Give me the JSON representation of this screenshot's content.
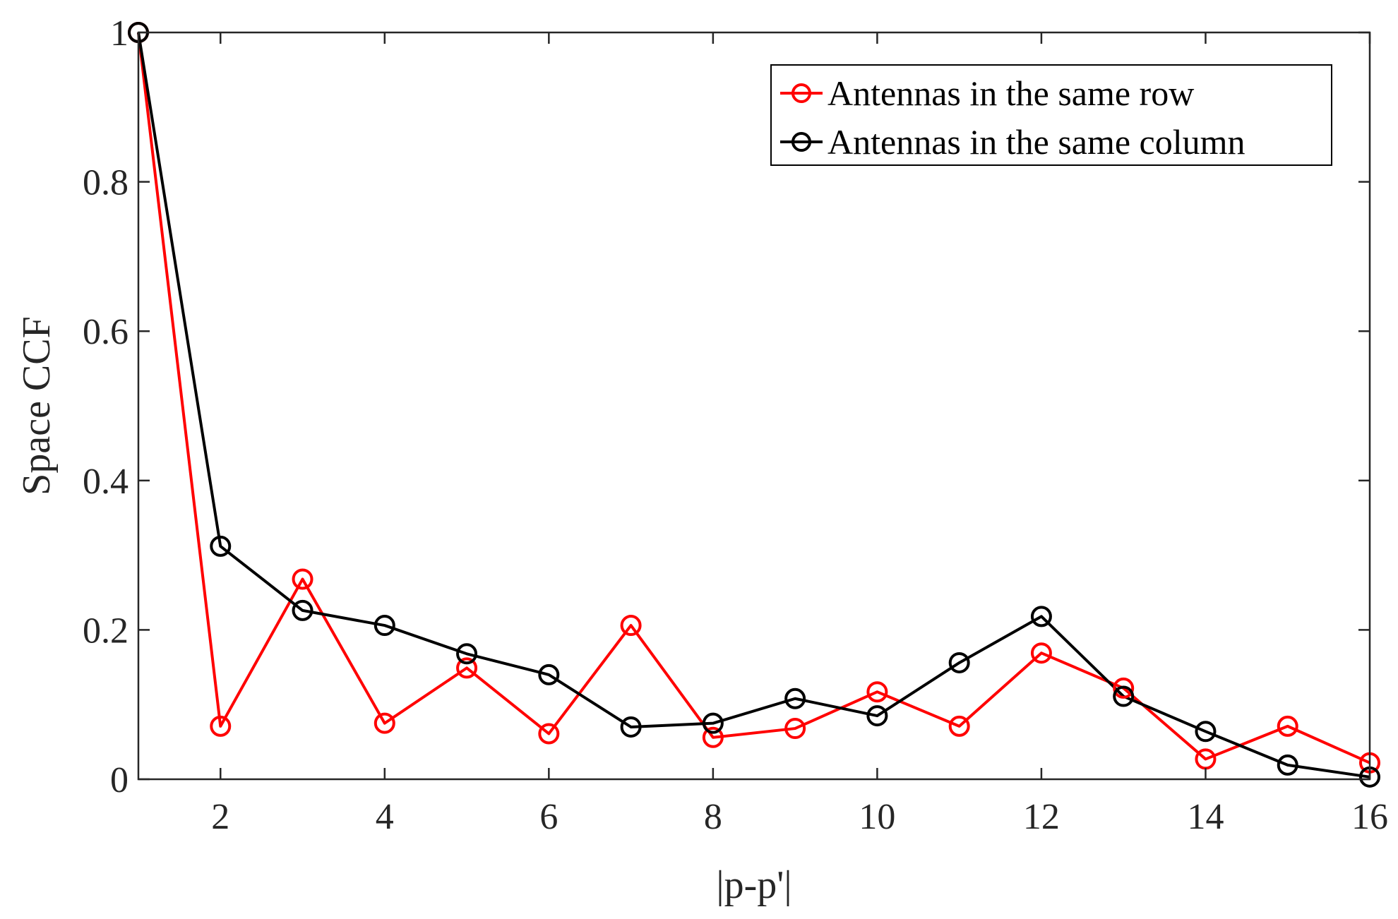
{
  "chart_data": {
    "type": "line",
    "xlabel": "|p-p'|",
    "ylabel": "Space CCF",
    "xlim": [
      1,
      16
    ],
    "ylim": [
      0,
      1
    ],
    "xticks": [
      2,
      4,
      6,
      8,
      10,
      12,
      14,
      16
    ],
    "yticks": [
      0,
      0.2,
      0.4,
      0.6,
      0.8,
      1
    ],
    "ytick_labels": [
      "0",
      "0.2",
      "0.4",
      "0.6",
      "0.8",
      "1"
    ],
    "grid": false,
    "legend_position": "top-right",
    "x": [
      1,
      2,
      3,
      4,
      5,
      6,
      7,
      8,
      9,
      10,
      11,
      12,
      13,
      14,
      15,
      16
    ],
    "series": [
      {
        "name": "Antennas in the same row",
        "color": "#ff0000",
        "marker": "circle",
        "values": [
          1.0,
          0.071,
          0.268,
          0.075,
          0.149,
          0.061,
          0.206,
          0.056,
          0.068,
          0.117,
          0.071,
          0.169,
          0.122,
          0.027,
          0.071,
          0.022
        ]
      },
      {
        "name": "Antennas in the same column",
        "color": "#000000",
        "marker": "circle",
        "values": [
          1.0,
          0.312,
          0.226,
          0.206,
          0.168,
          0.14,
          0.07,
          0.075,
          0.108,
          0.085,
          0.156,
          0.218,
          0.111,
          0.064,
          0.019,
          0.003
        ]
      }
    ]
  }
}
